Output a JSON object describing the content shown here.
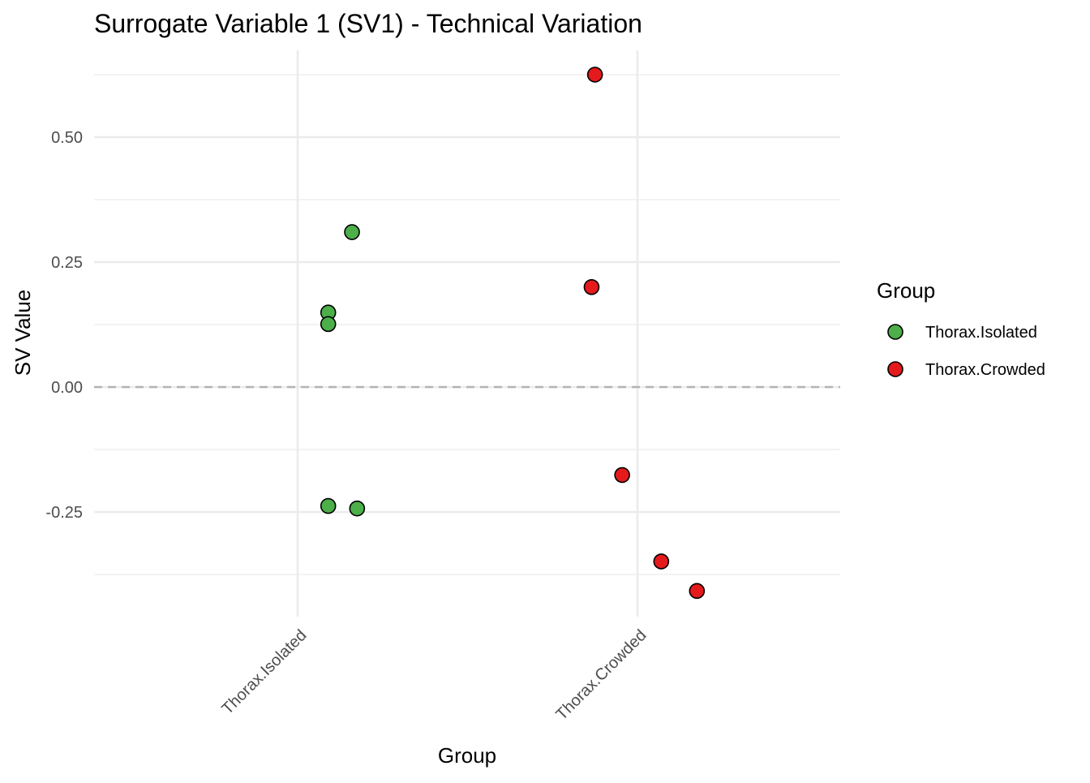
{
  "chart_data": {
    "type": "scatter",
    "title": "Surrogate Variable 1 (SV1) - Technical Variation",
    "xlabel": "Group",
    "ylabel": "SV Value",
    "categories": [
      "Thorax.Isolated",
      "Thorax.Crowded"
    ],
    "ylim": [
      -0.42,
      0.64
    ],
    "yticks": [
      -0.25,
      0.0,
      0.25,
      0.5
    ],
    "ytick_labels": [
      "-0.25",
      "0.00",
      "0.25",
      "0.50"
    ],
    "reference_line": {
      "y": 0.0,
      "style": "dashed",
      "color": "#b3b3b3"
    },
    "grid": true,
    "legend": {
      "title": "Group",
      "placement": "right",
      "entries": [
        {
          "label": "Thorax.Isolated",
          "color": "#4daf4a"
        },
        {
          "label": "Thorax.Crowded",
          "color": "#e41a1c"
        }
      ]
    },
    "series": [
      {
        "name": "Thorax.Isolated",
        "color": "#4daf4a",
        "category_index": 0,
        "points": [
          {
            "jitter": 0.16,
            "y": 0.31
          },
          {
            "jitter": 0.09,
            "y": 0.149
          },
          {
            "jitter": 0.09,
            "y": 0.126
          },
          {
            "jitter": 0.09,
            "y": -0.238
          },
          {
            "jitter": 0.175,
            "y": -0.243
          }
        ]
      },
      {
        "name": "Thorax.Crowded",
        "color": "#e41a1c",
        "category_index": 1,
        "points": [
          {
            "jitter": -0.125,
            "y": 0.625
          },
          {
            "jitter": -0.135,
            "y": 0.2
          },
          {
            "jitter": -0.045,
            "y": -0.176
          },
          {
            "jitter": 0.07,
            "y": -0.349
          },
          {
            "jitter": 0.175,
            "y": -0.408
          }
        ]
      }
    ]
  }
}
